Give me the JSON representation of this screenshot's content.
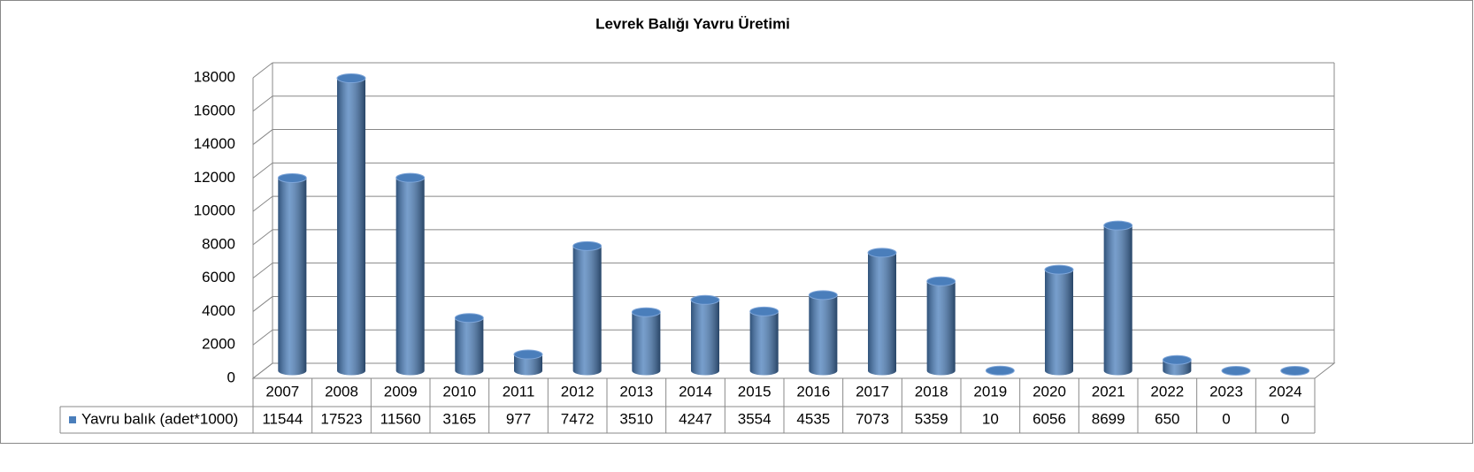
{
  "chart_data": {
    "type": "bar",
    "title": "Levrek Balığı Yavru Üretimi",
    "categories": [
      "2007",
      "2008",
      "2009",
      "2010",
      "2011",
      "2012",
      "2013",
      "2014",
      "2015",
      "2016",
      "2017",
      "2018",
      "2019",
      "2020",
      "2021",
      "2022",
      "2023",
      "2024"
    ],
    "series": [
      {
        "name": "Yavru balık (adet*1000)",
        "color": "#4a7ebb",
        "values": [
          11544,
          17523,
          11560,
          3165,
          977,
          7472,
          3510,
          4247,
          3554,
          4535,
          7073,
          5359,
          10,
          6056,
          8699,
          650,
          0,
          0
        ]
      }
    ],
    "ylim": [
      0,
      18000
    ],
    "yticks": [
      0,
      2000,
      4000,
      6000,
      8000,
      10000,
      12000,
      14000,
      16000,
      18000
    ],
    "grid": true
  }
}
